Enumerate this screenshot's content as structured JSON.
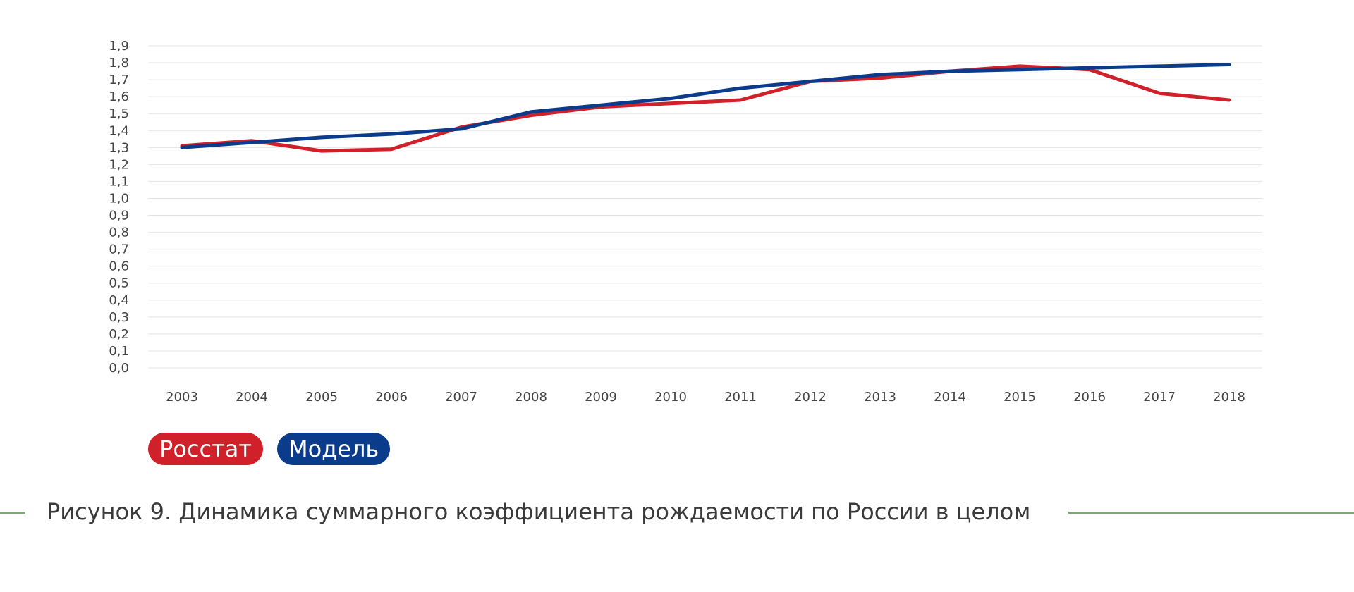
{
  "caption": "Рисунок 9. Динамика суммарного коэффициента рождаемости по России в целом",
  "chart_data": {
    "type": "line",
    "title": "",
    "xlabel": "",
    "ylabel": "",
    "x": [
      "2003",
      "2004",
      "2005",
      "2006",
      "2007",
      "2008",
      "2009",
      "2010",
      "2011",
      "2012",
      "2013",
      "2014",
      "2015",
      "2016",
      "2017",
      "2018"
    ],
    "ylim": [
      0,
      1.9
    ],
    "y_ticks": [
      "0,0",
      "0,1",
      "0,2",
      "0,3",
      "0,4",
      "0,5",
      "0,6",
      "0,7",
      "0,8",
      "0,9",
      "1,0",
      "1,1",
      "1,2",
      "1,3",
      "1,4",
      "1,5",
      "1,6",
      "1,7",
      "1,8",
      "1,9"
    ],
    "grid": true,
    "legend_position": "bottom-left",
    "series": [
      {
        "name": "Росстат",
        "color": "#d0202a",
        "values": [
          1.31,
          1.34,
          1.28,
          1.29,
          1.42,
          1.49,
          1.54,
          1.56,
          1.58,
          1.69,
          1.71,
          1.75,
          1.78,
          1.76,
          1.62,
          1.58
        ]
      },
      {
        "name": "Модель",
        "color": "#0b3c8c",
        "values": [
          1.3,
          1.33,
          1.36,
          1.38,
          1.41,
          1.51,
          1.55,
          1.59,
          1.65,
          1.69,
          1.73,
          1.75,
          1.76,
          1.77,
          1.78,
          1.79
        ]
      }
    ]
  }
}
